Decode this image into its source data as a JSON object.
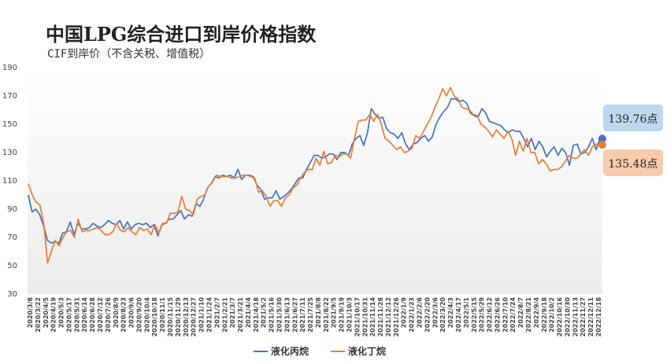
{
  "chart_data": {
    "type": "line",
    "title": "中国LPG综合进口到岸价格指数",
    "subtitle": "CIF到岸价（不含关税、增值税）",
    "xlabel": "",
    "ylabel": "",
    "ylim": [
      30,
      190
    ],
    "yticks": [
      30,
      50,
      70,
      90,
      110,
      130,
      150,
      170,
      190
    ],
    "grid": false,
    "legend": "bottom",
    "x_tick_labels": [
      "2020/3/8",
      "2020/3/22",
      "2020/4/5",
      "2020/4/19",
      "2020/5/3",
      "2020/5/17",
      "2020/5/31",
      "2020/6/14",
      "2020/6/28",
      "2020/7/12",
      "2020/7/26",
      "2020/8/9",
      "2020/8/23",
      "2020/9/6",
      "2020/9/20",
      "2020/10/4",
      "2020/10/18",
      "2020/11/1",
      "2020/11/15",
      "2020/11/29",
      "2020/12/13",
      "2020/12/27",
      "2021/1/10",
      "2021/1/24",
      "2021/2/7",
      "2021/2/21",
      "2021/3/7",
      "2021/3/21",
      "2021/4/4",
      "2021/4/18",
      "2021/5/2",
      "2021/5/16",
      "2021/5/30",
      "2021/6/13",
      "2021/6/27",
      "2021/7/11",
      "2021/7/25",
      "2021/8/8",
      "2021/8/22",
      "2021/9/5",
      "2021/9/19",
      "2021/10/3",
      "2021/10/17",
      "2021/10/31",
      "2021/11/14",
      "2021/11/28",
      "2021/12/12",
      "2021/12/26",
      "2022/1/9",
      "2022/1/23",
      "2022/2/6",
      "2022/2/20",
      "2022/3/6",
      "2022/3/20",
      "2022/4/3",
      "2022/4/17",
      "2022/5/1",
      "2022/5/15",
      "2022/5/29",
      "2022/6/12",
      "2022/6/26",
      "2022/7/10",
      "2022/7/24",
      "2022/8/7",
      "2022/8/21",
      "2022/9/4",
      "2022/9/18",
      "2022/10/2",
      "2022/10/16",
      "2022/10/30",
      "2022/11/13",
      "2022/11/27",
      "2022/12/11",
      "2022/12/18"
    ],
    "series": [
      {
        "name": "液化丙烷",
        "color": "#4472C4",
        "last_label": "139.76点",
        "values": [
          100,
          88,
          90,
          86,
          78,
          68,
          66,
          67,
          66,
          73,
          74,
          81,
          72,
          80,
          76,
          76,
          77,
          80,
          78,
          77,
          79,
          82,
          80,
          79,
          82,
          76,
          81,
          76,
          79,
          80,
          79,
          80,
          77,
          79,
          71,
          79,
          80,
          83,
          83,
          86,
          89,
          83,
          86,
          85,
          94,
          92,
          97,
          105,
          108,
          113,
          112,
          114,
          113,
          114,
          112,
          118,
          111,
          114,
          114,
          113,
          107,
          104,
          97,
          98,
          98,
          103,
          97,
          99,
          101,
          104,
          108,
          112,
          112,
          118,
          123,
          128,
          128,
          126,
          127,
          129,
          129,
          125,
          130,
          130,
          128,
          136,
          140,
          142,
          135,
          144,
          161,
          157,
          154,
          155,
          147,
          144,
          143,
          140,
          144,
          136,
          132,
          136,
          137,
          140,
          142,
          138,
          141,
          150,
          155,
          159,
          162,
          168,
          168,
          166,
          167,
          165,
          158,
          156,
          155,
          161,
          158,
          152,
          151,
          150,
          149,
          146,
          144,
          146,
          145,
          145,
          140,
          134,
          140,
          132,
          138,
          134,
          127,
          131,
          134,
          128,
          133,
          130,
          121,
          135,
          136,
          129,
          130,
          134,
          140,
          132,
          139.76
        ]
      },
      {
        "name": "液化丁烷",
        "color": "#ED7D31",
        "last_label": "135.48点",
        "values": [
          108,
          100,
          95,
          93,
          80,
          52,
          60,
          68,
          64,
          70,
          74,
          75,
          70,
          83,
          74,
          75,
          75,
          76,
          77,
          75,
          72,
          72,
          74,
          80,
          75,
          74,
          77,
          74,
          72,
          77,
          75,
          76,
          72,
          79,
          73,
          80,
          80,
          87,
          87,
          88,
          99,
          90,
          89,
          86,
          97,
          99,
          100,
          106,
          109,
          114,
          113,
          113,
          113,
          112,
          112,
          113,
          114,
          114,
          113,
          112,
          102,
          103,
          99,
          92,
          96,
          96,
          92,
          98,
          100,
          105,
          107,
          112,
          116,
          118,
          118,
          126,
          121,
          131,
          122,
          123,
          128,
          127,
          129,
          129,
          126,
          140,
          152,
          153,
          153,
          157,
          152,
          157,
          150,
          140,
          138,
          135,
          132,
          134,
          130,
          131,
          133,
          142,
          140,
          145,
          150,
          155,
          162,
          168,
          175,
          170,
          176,
          170,
          168,
          162,
          161,
          160,
          157,
          156,
          150,
          148,
          145,
          141,
          146,
          143,
          140,
          145,
          140,
          128,
          138,
          131,
          140,
          130,
          130,
          122,
          125,
          122,
          117,
          118,
          118,
          120,
          124,
          128,
          126,
          126,
          129,
          132,
          128,
          134,
          136,
          135.48
        ]
      }
    ]
  }
}
